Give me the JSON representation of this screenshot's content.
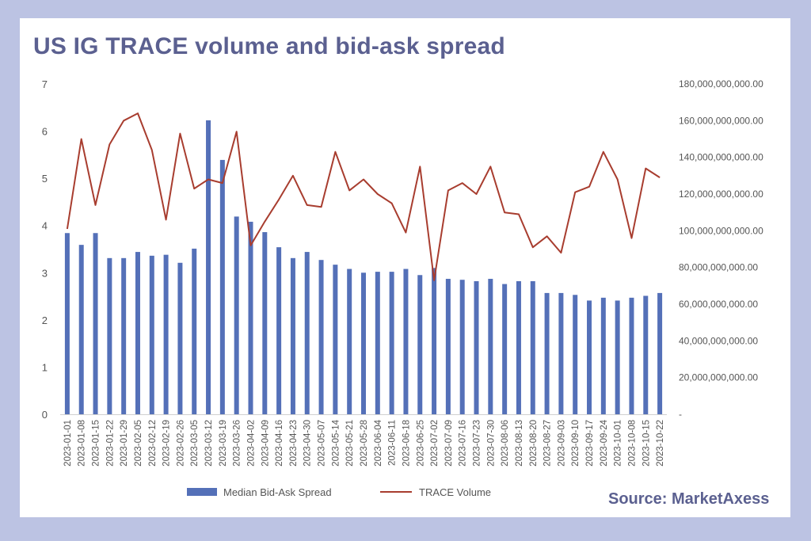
{
  "title": "US IG TRACE volume and bid-ask spread",
  "source": "Source: MarketAxess",
  "chart_data": {
    "type": "bar",
    "title": "US IG TRACE volume and bid-ask spread",
    "categories": [
      "2023-01-01",
      "2023-01-08",
      "2023-01-15",
      "2023-01-22",
      "2023-01-29",
      "2023-02-05",
      "2023-02-12",
      "2023-02-19",
      "2023-02-26",
      "2023-03-05",
      "2023-03-12",
      "2023-03-19",
      "2023-03-26",
      "2023-04-02",
      "2023-04-09",
      "2023-04-16",
      "2023-04-23",
      "2023-04-30",
      "2023-05-07",
      "2023-05-14",
      "2023-05-21",
      "2023-05-28",
      "2023-06-04",
      "2023-06-11",
      "2023-06-18",
      "2023-06-25",
      "2023-07-02",
      "2023-07-09",
      "2023-07-16",
      "2023-07-23",
      "2023-07-30",
      "2023-08-06",
      "2023-08-13",
      "2023-08-20",
      "2023-08-27",
      "2023-09-03",
      "2023-09-10",
      "2023-09-17",
      "2023-09-24",
      "2023-10-01",
      "2023-10-08",
      "2023-10-15",
      "2023-10-22"
    ],
    "y_left": {
      "ylim": [
        0,
        7
      ],
      "ticks": [
        "0",
        "1",
        "2",
        "3",
        "4",
        "5",
        "6",
        "7"
      ]
    },
    "y_right": {
      "ylim": [
        0,
        180000000000
      ],
      "ticks": [
        "-",
        "20,000,000,000.00",
        "40,000,000,000.00",
        "60,000,000,000.00",
        "80,000,000,000.00",
        "100,000,000,000.00",
        "120,000,000,000.00",
        "140,000,000,000.00",
        "160,000,000,000.00",
        "180,000,000,000.00"
      ]
    },
    "legend_position": "bottom",
    "grid": false,
    "series": [
      {
        "name": "Median Bid-Ask Spread",
        "type": "bar",
        "axis": "left",
        "color": "#5470b8",
        "values": [
          3.84,
          3.59,
          3.84,
          3.31,
          3.31,
          3.44,
          3.36,
          3.38,
          3.21,
          3.51,
          6.23,
          5.39,
          4.19,
          4.08,
          3.86,
          3.54,
          3.31,
          3.44,
          3.27,
          3.17,
          3.08,
          3.0,
          3.02,
          3.02,
          3.08,
          2.95,
          3.1,
          2.87,
          2.85,
          2.82,
          2.87,
          2.76,
          2.82,
          2.82,
          2.57,
          2.57,
          2.53,
          2.41,
          2.47,
          2.41,
          2.47,
          2.51,
          2.57
        ]
      },
      {
        "name": "TRACE Volume",
        "type": "line",
        "axis": "right",
        "color": "#a83d2f",
        "values": [
          101000000000,
          150000000000,
          114000000000,
          147000000000,
          160000000000,
          164000000000,
          144000000000,
          106000000000,
          153000000000,
          123000000000,
          128000000000,
          126000000000,
          154000000000,
          92000000000,
          105000000000,
          117000000000,
          130000000000,
          114000000000,
          113000000000,
          143000000000,
          122000000000,
          128000000000,
          120000000000,
          115000000000,
          99000000000,
          135000000000,
          73000000000,
          122000000000,
          126000000000,
          120000000000,
          135000000000,
          110000000000,
          109000000000,
          91000000000,
          97000000000,
          88000000000,
          121000000000,
          124000000000,
          143000000000,
          128000000000,
          96000000000,
          134000000000,
          129000000000
        ]
      }
    ]
  }
}
